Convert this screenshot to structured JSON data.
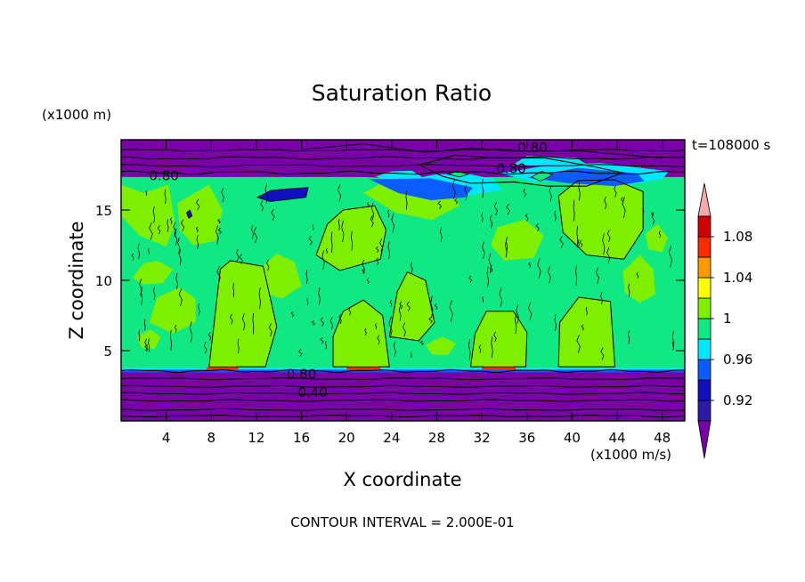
{
  "chart_data": {
    "type": "heatmap",
    "title": "Saturation Ratio",
    "time_label": "t=108000 s",
    "xlabel": "X coordinate",
    "ylabel": "Z coordinate",
    "x_unit": "(x1000 m/s)",
    "z_unit": "(x1000 m)",
    "footer": "CONTOUR INTERVAL = 2.000E-01",
    "xlim": [
      0,
      50
    ],
    "ylim": [
      0,
      20
    ],
    "x_ticks": [
      4,
      8,
      12,
      16,
      20,
      24,
      28,
      32,
      36,
      40,
      44,
      48
    ],
    "y_ticks": [
      5,
      10,
      15
    ],
    "x_tick_labels": [
      "4",
      "8",
      "12",
      "16",
      "20",
      "24",
      "28",
      "32",
      "36",
      "40",
      "44",
      "48"
    ],
    "y_tick_labels": [
      "5",
      "10",
      "15"
    ],
    "colorbar": {
      "levels": [
        0.9,
        0.92,
        0.94,
        0.96,
        0.98,
        1.0,
        1.02,
        1.04,
        1.06,
        1.08,
        1.1
      ],
      "labels": [
        {
          "value": 0.92,
          "text": "0.92"
        },
        {
          "value": 0.96,
          "text": "0.96"
        },
        {
          "value": 1.0,
          "text": "1"
        },
        {
          "value": 1.04,
          "text": "1.04"
        },
        {
          "value": 1.08,
          "text": "1.08"
        }
      ],
      "colors": {
        "below_min": "#7a00a8",
        "bins": [
          "#2d1aa8",
          "#1010c0",
          "#0a5cff",
          "#00e8ff",
          "#10e884",
          "#7fef00",
          "#ffff00",
          "#ff9a00",
          "#ff2a00",
          "#d00000"
        ],
        "above_max": "#f4aaaa"
      }
    },
    "contour_labels": [
      {
        "x": 3.8,
        "z": 17.4,
        "text": "0.80"
      },
      {
        "x": 16.0,
        "z": 3.3,
        "text": "0.80"
      },
      {
        "x": 17.0,
        "z": 2.0,
        "text": "0.40"
      },
      {
        "x": 36.5,
        "z": 19.4,
        "text": "0.80"
      },
      {
        "x": 34.6,
        "z": 17.9,
        "text": "0.80"
      }
    ],
    "regions": {
      "bottom_dry_layer_top_z": 3.6,
      "moist_layer_top_z": 17.2,
      "upper_dry_layer_bottom_z": 17.8,
      "saturated_columns_x": [
        [
          8,
          13
        ],
        [
          19,
          24
        ],
        [
          31,
          36
        ],
        [
          39,
          44
        ]
      ],
      "supersaturated_patches_x": [
        [
          7.6,
          10.4
        ],
        [
          20.0,
          23.0
        ],
        [
          32.0,
          35.0
        ]
      ]
    }
  }
}
